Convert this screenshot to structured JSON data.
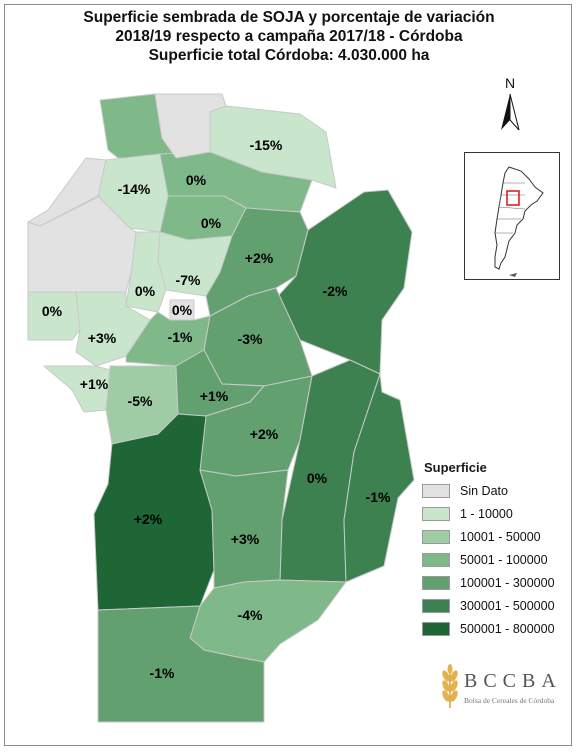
{
  "title": {
    "line1": "Superficie sembrada de SOJA y porcentaje de variación",
    "line2": "2018/19 respecto a campaña 2017/18 - Córdoba",
    "line3": "Superficie total Córdoba: 4.030.000 ha"
  },
  "north_label": "N",
  "legend": {
    "title": "Superficie",
    "items": [
      {
        "label": "Sin Dato",
        "color": "#e2e2e2"
      },
      {
        "label": "1 - 10000",
        "color": "#c9e6cc"
      },
      {
        "label": "10001 - 50000",
        "color": "#9fcca4"
      },
      {
        "label": "50001 - 100000",
        "color": "#7fb889"
      },
      {
        "label": "100001 - 300000",
        "color": "#62a06f"
      },
      {
        "label": "300001 - 500000",
        "color": "#3d8150"
      },
      {
        "label": "500001 - 800000",
        "color": "#1f6637"
      }
    ]
  },
  "departments": [
    {
      "id": "sobremonte",
      "variation": "",
      "class": "50001 - 100000"
    },
    {
      "id": "rio-seco",
      "variation": "-15%",
      "class": "1 - 10000"
    },
    {
      "id": "ischilin",
      "variation": "-14%",
      "class": "1 - 10000"
    },
    {
      "id": "tulumba-norte",
      "variation": "0%",
      "class": "50001 - 100000"
    },
    {
      "id": "totoral",
      "variation": "0%",
      "class": "50001 - 100000"
    },
    {
      "id": "colon",
      "variation": "-7%",
      "class": "1 - 10000"
    },
    {
      "id": "punilla",
      "variation": "0%",
      "class": "1 - 10000"
    },
    {
      "id": "capital",
      "variation": "0%",
      "class": "Sin Dato"
    },
    {
      "id": "minas",
      "variation": "0%",
      "class": "1 - 10000"
    },
    {
      "id": "san-alberto",
      "variation": "+3%",
      "class": "1 - 10000"
    },
    {
      "id": "san-javier",
      "variation": "+1%",
      "class": "1 - 10000"
    },
    {
      "id": "santa-maria",
      "variation": "-1%",
      "class": "50001 - 100000"
    },
    {
      "id": "calamuchita",
      "variation": "-5%",
      "class": "10001 - 50000"
    },
    {
      "id": "rio-primero",
      "variation": "+2%",
      "class": "100001 - 300000"
    },
    {
      "id": "san-justo",
      "variation": "-2%",
      "class": "300001 - 500000"
    },
    {
      "id": "rio-segundo",
      "variation": "-3%",
      "class": "100001 - 300000"
    },
    {
      "id": "tercero-arriba",
      "variation": "+1%",
      "class": "100001 - 300000"
    },
    {
      "id": "general-san-martin",
      "variation": "+2%",
      "class": "100001 - 300000"
    },
    {
      "id": "union",
      "variation": "0%",
      "class": "300001 - 500000"
    },
    {
      "id": "marcos-juarez",
      "variation": "-1%",
      "class": "300001 - 500000"
    },
    {
      "id": "rio-cuarto",
      "variation": "+2%",
      "class": "500001 - 800000"
    },
    {
      "id": "juarez-celman",
      "variation": "+3%",
      "class": "100001 - 300000"
    },
    {
      "id": "presidente-roque-saenz-pena",
      "variation": "-4%",
      "class": "50001 - 100000"
    },
    {
      "id": "general-roca",
      "variation": "-1%",
      "class": "100001 - 300000"
    }
  ],
  "logo": {
    "name": "BCCBA",
    "subtitle": "Bolsa de Cereales de Córdoba"
  }
}
